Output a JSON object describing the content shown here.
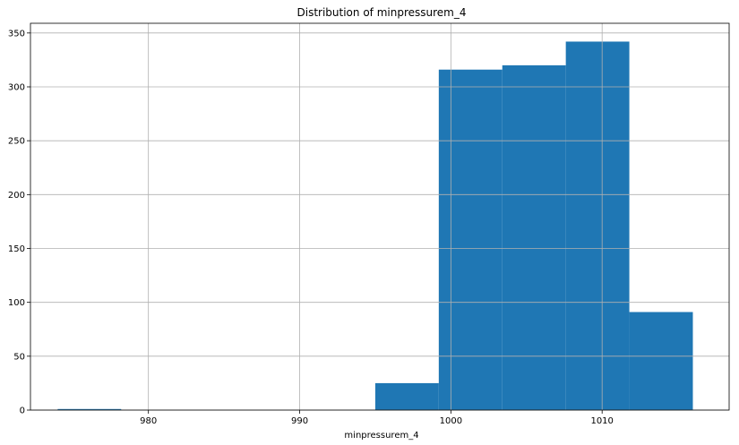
{
  "chart_data": {
    "type": "bar",
    "title": "Distribution of minpressurem_4",
    "xlabel": "minpressurem_4",
    "ylabel": "",
    "bins": [
      {
        "x0": 974.0,
        "x1": 978.2,
        "count": 1
      },
      {
        "x0": 978.2,
        "x1": 982.4,
        "count": 0
      },
      {
        "x0": 982.4,
        "x1": 986.6,
        "count": 0
      },
      {
        "x0": 986.6,
        "x1": 990.8,
        "count": 0
      },
      {
        "x0": 990.8,
        "x1": 995.0,
        "count": 0
      },
      {
        "x0": 995.0,
        "x1": 999.2,
        "count": 25
      },
      {
        "x0": 999.2,
        "x1": 1003.4,
        "count": 316
      },
      {
        "x0": 1003.4,
        "x1": 1007.6,
        "count": 320
      },
      {
        "x0": 1007.6,
        "x1": 1011.8,
        "count": 342
      },
      {
        "x0": 1011.8,
        "x1": 1016.0,
        "count": 91
      }
    ],
    "xlim": [
      972.2,
      1018.4
    ],
    "ylim": [
      0,
      359
    ],
    "xticks": [
      980,
      990,
      1000,
      1010
    ],
    "yticks": [
      0,
      50,
      100,
      150,
      200,
      250,
      300,
      350
    ],
    "grid": true,
    "bar_color": "#1f77b4",
    "grid_color": "#b0b0b0"
  }
}
